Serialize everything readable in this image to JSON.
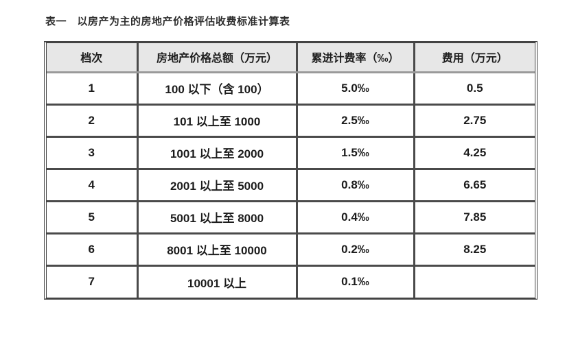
{
  "page": {
    "title": "表一　以房产为主的房地产价格评估收费标准计算表"
  },
  "table": {
    "columns": [
      "档次",
      "房地产价格总额（万元）",
      "累进计费率（‰）",
      "费用（万元）"
    ],
    "rows": [
      [
        "1",
        "100 以下（含 100）",
        "5.0‰",
        "0.5"
      ],
      [
        "2",
        "101 以上至 1000",
        "2.5‰",
        "2.75"
      ],
      [
        "3",
        "1001 以上至 2000",
        "1.5‰",
        "4.25"
      ],
      [
        "4",
        "2001 以上至 5000",
        "0.8‰",
        "6.65"
      ],
      [
        "5",
        "5001 以上至 8000",
        "0.4‰",
        "7.85"
      ],
      [
        "6",
        "8001 以上至 10000",
        "0.2‰",
        "8.25"
      ],
      [
        "7",
        "10001 以上",
        "0.1‰",
        ""
      ]
    ]
  },
  "colors": {
    "header_bg": "#e7e7e7",
    "inner_border": "#4a4a4a",
    "outer_border": "#434343",
    "header_divider": "#9a9a9a",
    "text": "#1c1c1c",
    "title_color": "#2e2e2e"
  }
}
